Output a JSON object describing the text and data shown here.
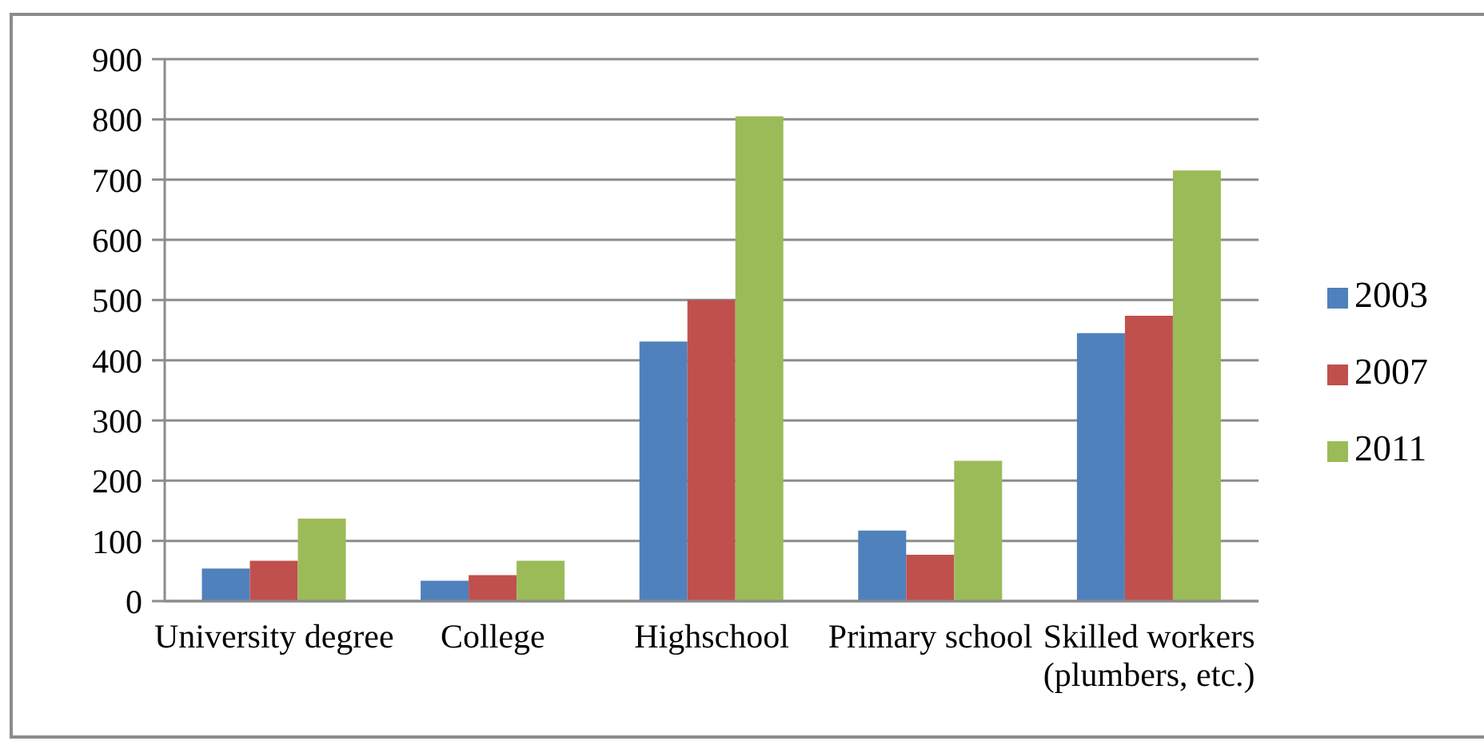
{
  "chart_data": {
    "type": "bar",
    "categories": [
      "University degree",
      "College",
      "Highschool",
      "Primary school",
      "Skilled workers (plumbers, etc.)"
    ],
    "series": [
      {
        "name": "2003",
        "color": "#4f81bd",
        "values": [
          54,
          34,
          431,
          117,
          445
        ]
      },
      {
        "name": "2007",
        "color": "#c0504d",
        "values": [
          67,
          43,
          500,
          77,
          474
        ]
      },
      {
        "name": "2011",
        "color": "#9bbb59",
        "values": [
          137,
          67,
          805,
          233,
          715
        ]
      }
    ],
    "ylim": [
      0,
      900
    ],
    "yticks": [
      0,
      100,
      200,
      300,
      400,
      500,
      600,
      700,
      800,
      900
    ],
    "grid": "y",
    "legend": "right"
  }
}
